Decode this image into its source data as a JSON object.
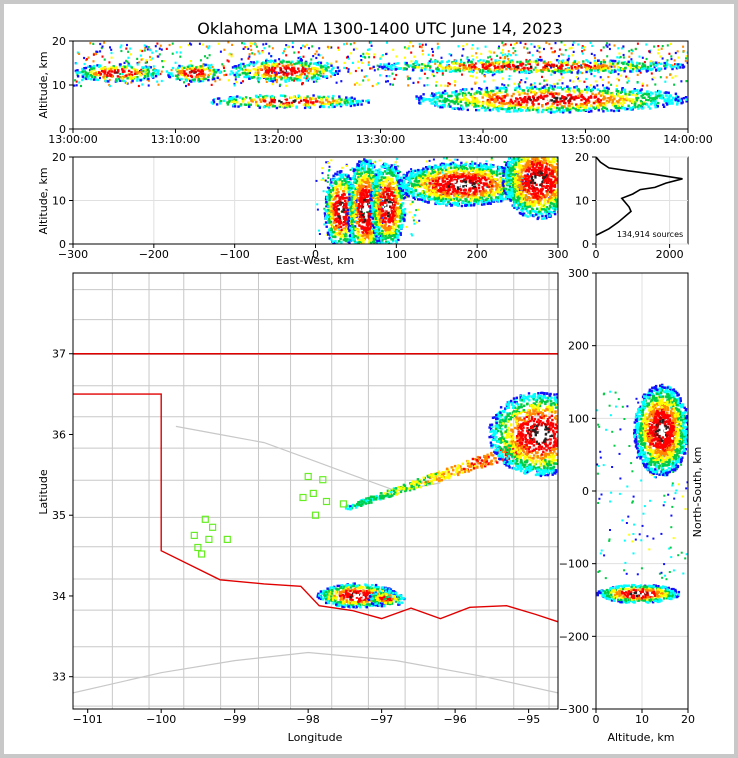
{
  "chart_data": [
    {
      "type": "heatmap",
      "panel": "altitude-vs-time",
      "title": "Oklahoma LMA 1300-1400 UTC June 14, 2023",
      "xlabel": "",
      "ylabel": "Altitude, km",
      "x_ticks": [
        "13:00:00",
        "13:10:00",
        "13:20:00",
        "13:30:00",
        "13:40:00",
        "13:50:00",
        "14:00:00"
      ],
      "y_ticks": [
        0,
        10,
        20
      ],
      "ylim": [
        0,
        20
      ],
      "bands": [
        {
          "t0": 0,
          "t1": 8.5,
          "z0": 11,
          "z1": 15
        },
        {
          "t0": 9,
          "t1": 14.5,
          "z0": 11,
          "z1": 15
        },
        {
          "t0": 15,
          "t1": 26,
          "z0": 11,
          "z1": 16
        },
        {
          "t0": 13,
          "t1": 29,
          "z0": 5,
          "z1": 8
        },
        {
          "t0": 29,
          "t1": 60,
          "z0": 13,
          "z1": 16
        },
        {
          "t0": 33,
          "t1": 60,
          "z0": 4,
          "z1": 10
        }
      ]
    },
    {
      "type": "heatmap",
      "panel": "altitude-vs-east-west",
      "xlabel": "East-West, km",
      "ylabel": "Altitude, km",
      "x_ticks": [
        -300,
        -200,
        -100,
        0,
        100,
        200,
        300
      ],
      "y_ticks": [
        0,
        10,
        20
      ],
      "xlim": [
        -300,
        300
      ],
      "ylim": [
        0,
        20
      ],
      "cells": [
        {
          "x": 30,
          "z": 8,
          "w": 20,
          "h": 9
        },
        {
          "x": 60,
          "z": 8,
          "w": 22,
          "h": 12
        },
        {
          "x": 88,
          "z": 9,
          "w": 22,
          "h": 10
        },
        {
          "x": 180,
          "z": 14,
          "w": 80,
          "h": 5
        },
        {
          "x": 275,
          "z": 15,
          "w": 45,
          "h": 9
        }
      ]
    },
    {
      "type": "line",
      "panel": "altitude-histogram",
      "x_ticks": [
        0,
        2000
      ],
      "y_ticks": [
        0,
        10,
        20
      ],
      "xlim": [
        0,
        2500
      ],
      "ylim": [
        0,
        20
      ],
      "annotation": "134,914 sources",
      "x": [
        0,
        120,
        350,
        600,
        950,
        900,
        700,
        1000,
        1200,
        1600,
        1900,
        2350,
        1600,
        900,
        350,
        120,
        0
      ],
      "y": [
        2,
        2.5,
        3.5,
        5,
        7.5,
        8.5,
        10.5,
        11.5,
        12.5,
        13,
        14,
        15,
        16,
        16.8,
        17.5,
        18.8,
        20
      ]
    },
    {
      "type": "heatmap",
      "panel": "plan-view",
      "xlabel": "Longitude",
      "ylabel": "Latitude",
      "x_ticks": [
        -101,
        -100,
        -99,
        -98,
        -97,
        -96,
        -95
      ],
      "y_ticks": [
        33,
        34,
        35,
        36,
        37
      ],
      "xlim": [
        -101.2,
        -94.6
      ],
      "ylim": [
        32.6,
        38
      ],
      "stations": [
        {
          "lon": -99.4,
          "lat": 34.95
        },
        {
          "lon": -99.3,
          "lat": 34.85
        },
        {
          "lon": -99.55,
          "lat": 34.75
        },
        {
          "lon": -99.35,
          "lat": 34.7
        },
        {
          "lon": -99.5,
          "lat": 34.6
        },
        {
          "lon": -99.45,
          "lat": 34.52
        },
        {
          "lon": -99.1,
          "lat": 34.7
        },
        {
          "lon": -98.0,
          "lat": 35.48
        },
        {
          "lon": -97.8,
          "lat": 35.44
        },
        {
          "lon": -98.07,
          "lat": 35.22
        },
        {
          "lon": -97.93,
          "lat": 35.27
        },
        {
          "lon": -97.75,
          "lat": 35.17
        },
        {
          "lon": -97.9,
          "lat": 35.0
        },
        {
          "lon": -97.52,
          "lat": 35.14
        }
      ]
    },
    {
      "type": "heatmap",
      "panel": "north-south-vs-altitude",
      "xlabel": "Altitude, km",
      "ylabel": "North-South, km",
      "x_ticks": [
        0,
        10,
        20
      ],
      "y_ticks": [
        -300,
        -200,
        -100,
        0,
        100,
        200,
        300
      ],
      "xlim": [
        0,
        20
      ],
      "ylim": [
        -300,
        300
      ],
      "cells": [
        {
          "z": 14,
          "y": 85,
          "w": 12,
          "h": 70
        },
        {
          "z": 9,
          "y": -140,
          "w": 18,
          "h": 14
        }
      ]
    }
  ]
}
